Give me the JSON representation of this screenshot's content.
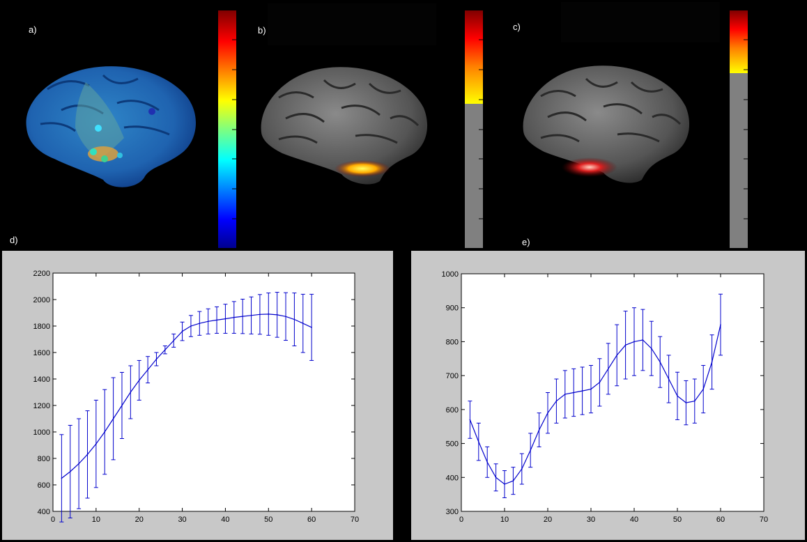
{
  "panels": {
    "a": {
      "label": "a)"
    },
    "b": {
      "label": "b)"
    },
    "c": {
      "label": "c)"
    },
    "d": {
      "label": "d)"
    },
    "e": {
      "label": "e)"
    }
  },
  "colors": {
    "background": "#000000",
    "figure_bg": "#c8c8c8",
    "line": "#0000cc",
    "colorbar_gray": "#808080"
  },
  "chart_data": [
    {
      "type": "line",
      "panel": "d",
      "title": "",
      "xlabel": "",
      "ylabel": "",
      "xlim": [
        0,
        70
      ],
      "ylim": [
        400,
        2200
      ],
      "xticks": [
        0,
        10,
        20,
        30,
        40,
        50,
        60,
        70
      ],
      "yticks": [
        400,
        600,
        800,
        1000,
        1200,
        1400,
        1600,
        1800,
        2000,
        2200
      ],
      "grid": false,
      "error_bars": true,
      "x": [
        2,
        4,
        6,
        8,
        10,
        12,
        14,
        16,
        18,
        20,
        22,
        24,
        26,
        28,
        30,
        32,
        34,
        36,
        38,
        40,
        42,
        44,
        46,
        48,
        50,
        52,
        54,
        56,
        58,
        60
      ],
      "y": [
        650,
        700,
        760,
        830,
        910,
        1000,
        1100,
        1200,
        1300,
        1390,
        1470,
        1550,
        1620,
        1690,
        1760,
        1800,
        1820,
        1835,
        1845,
        1855,
        1865,
        1873,
        1880,
        1888,
        1890,
        1885,
        1872,
        1850,
        1820,
        1790
      ],
      "err": [
        330,
        350,
        340,
        330,
        330,
        320,
        310,
        250,
        200,
        150,
        100,
        50,
        30,
        50,
        70,
        80,
        90,
        95,
        100,
        110,
        120,
        130,
        140,
        150,
        160,
        170,
        180,
        200,
        220,
        250
      ]
    },
    {
      "type": "line",
      "panel": "e",
      "title": "",
      "xlabel": "",
      "ylabel": "",
      "xlim": [
        0,
        70
      ],
      "ylim": [
        300,
        1000
      ],
      "xticks": [
        0,
        10,
        20,
        30,
        40,
        50,
        60,
        70
      ],
      "yticks": [
        300,
        400,
        500,
        600,
        700,
        800,
        900,
        1000
      ],
      "grid": false,
      "error_bars": true,
      "x": [
        2,
        4,
        6,
        8,
        10,
        12,
        14,
        16,
        18,
        20,
        22,
        24,
        26,
        28,
        30,
        32,
        34,
        36,
        38,
        40,
        42,
        44,
        46,
        48,
        50,
        52,
        54,
        56,
        58,
        60
      ],
      "y": [
        570,
        505,
        445,
        400,
        380,
        390,
        425,
        480,
        540,
        590,
        625,
        645,
        650,
        655,
        660,
        680,
        720,
        760,
        790,
        800,
        805,
        780,
        740,
        690,
        640,
        620,
        625,
        660,
        740,
        850
      ],
      "err": [
        55,
        55,
        45,
        40,
        40,
        40,
        45,
        50,
        50,
        60,
        65,
        70,
        70,
        70,
        70,
        70,
        75,
        90,
        100,
        100,
        90,
        80,
        75,
        70,
        70,
        65,
        65,
        70,
        80,
        90
      ]
    }
  ]
}
